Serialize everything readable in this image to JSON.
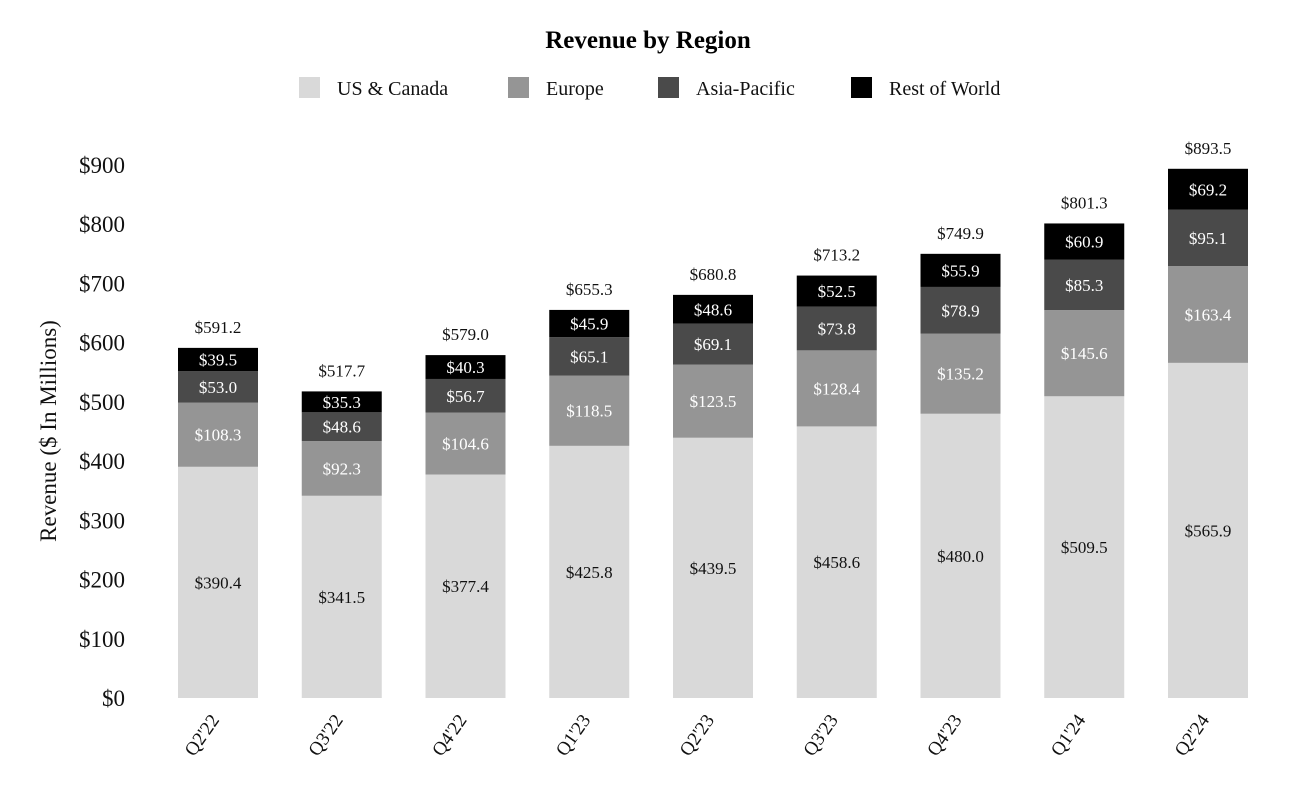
{
  "chart_data": {
    "type": "bar",
    "stacked": true,
    "title": "Revenue by Region",
    "xlabel": "",
    "ylabel": "Revenue ($ In Millions)",
    "ylim": [
      0,
      900
    ],
    "yticks": [
      "$0",
      "$100",
      "$200",
      "$300",
      "$400",
      "$500",
      "$600",
      "$700",
      "$800",
      "$900"
    ],
    "ytick_values": [
      0,
      100,
      200,
      300,
      400,
      500,
      600,
      700,
      800,
      900
    ],
    "categories": [
      "Q2'22",
      "Q3'22",
      "Q4'22",
      "Q1'23",
      "Q2'23",
      "Q3'23",
      "Q4'23",
      "Q1'24",
      "Q2'24"
    ],
    "grid": false,
    "legend_position": "top-center",
    "series": [
      {
        "name": "US & Canada",
        "color": "#d9d9d9",
        "label_color": "#111111",
        "values": [
          390.4,
          341.5,
          377.4,
          425.8,
          439.5,
          458.6,
          480.0,
          509.5,
          565.9
        ],
        "labels": [
          "$390.4",
          "$341.5",
          "$377.4",
          "$425.8",
          "$439.5",
          "$458.6",
          "$480.0",
          "$509.5",
          "$565.9"
        ]
      },
      {
        "name": "Europe",
        "color": "#959595",
        "label_color": "#ffffff",
        "values": [
          108.3,
          92.3,
          104.6,
          118.5,
          123.5,
          128.4,
          135.2,
          145.6,
          163.4
        ],
        "labels": [
          "$108.3",
          "$92.3",
          "$104.6",
          "$118.5",
          "$123.5",
          "$128.4",
          "$135.2",
          "$145.6",
          "$163.4"
        ]
      },
      {
        "name": "Asia-Pacific",
        "color": "#4a4a4a",
        "label_color": "#ffffff",
        "values": [
          53.0,
          48.6,
          56.7,
          65.1,
          69.1,
          73.8,
          78.9,
          85.3,
          95.1
        ],
        "labels": [
          "$53.0",
          "$48.6",
          "$56.7",
          "$65.1",
          "$69.1",
          "$73.8",
          "$78.9",
          "$85.3",
          "$95.1"
        ]
      },
      {
        "name": "Rest of World",
        "color": "#000000",
        "label_color": "#ffffff",
        "values": [
          39.5,
          35.3,
          40.3,
          45.9,
          48.6,
          52.5,
          55.9,
          60.9,
          69.2
        ],
        "labels": [
          "$39.5",
          "$35.3",
          "$40.3",
          "$45.9",
          "$48.6",
          "$52.5",
          "$55.9",
          "$60.9",
          "$69.2"
        ]
      }
    ],
    "totals": [
      591.2,
      517.7,
      579.0,
      655.3,
      680.8,
      713.2,
      749.9,
      801.3,
      893.5
    ],
    "total_labels": [
      "$591.2",
      "$517.7",
      "$579.0",
      "$655.3",
      "$680.8",
      "$713.2",
      "$749.9",
      "$801.3",
      "$893.5"
    ]
  }
}
